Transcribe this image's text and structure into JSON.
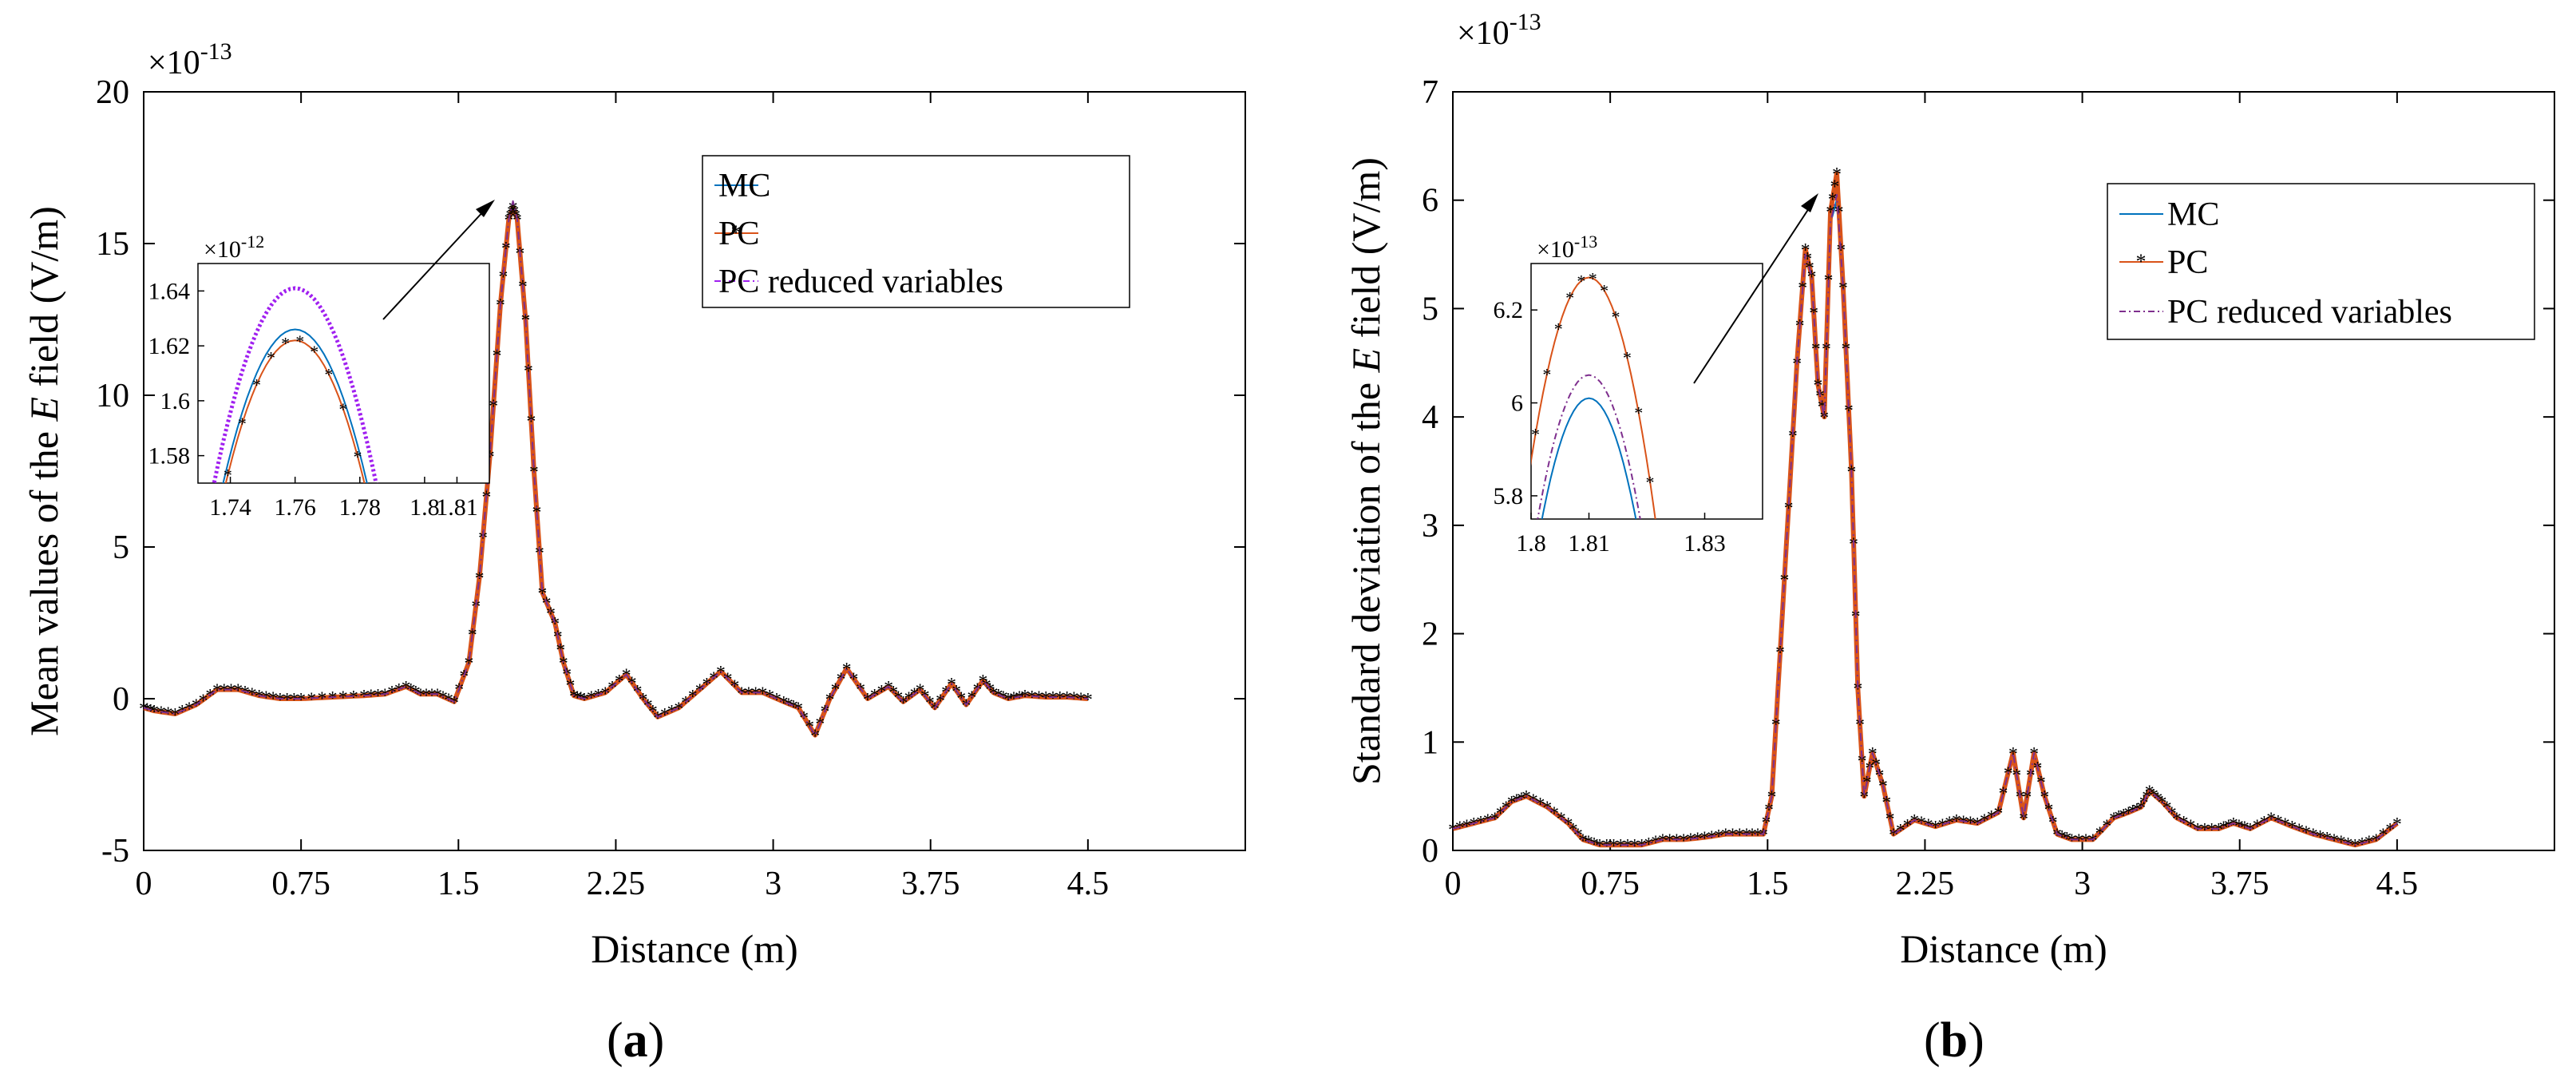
{
  "colors": {
    "mc": "#0072BD",
    "pc": "#D95319",
    "pcr": "#7E2F8E",
    "pcr_inset_a": "#A020F0",
    "axis": "#000000"
  },
  "legend": {
    "mc": "MC",
    "pc": "PC",
    "pcr": "PC reduced variables"
  },
  "chart_data": [
    {
      "type": "line",
      "panel": "a",
      "caption": {
        "open": "(",
        "letter": "a",
        "close": ")"
      },
      "xlabel": "Distance (m)",
      "ylabel_prefix": "Mean values of the ",
      "ylabel_var": "E",
      "ylabel_suffix": " field (V/m)",
      "exponent_label": "×10",
      "exponent": "-13",
      "xlim": [
        0,
        5.25
      ],
      "ylim": [
        -5,
        20
      ],
      "xticks": [
        0,
        0.75,
        1.5,
        2.25,
        3,
        3.75,
        4.5
      ],
      "xtick_labels": [
        "0",
        "0.75",
        "1.5",
        "2.25",
        "3",
        "3.75",
        "4.5"
      ],
      "yticks": [
        -5,
        0,
        5,
        10,
        15,
        20
      ],
      "ytick_labels": [
        "-5",
        "0",
        "5",
        "10",
        "15",
        "20"
      ],
      "legend_position": "top-right",
      "series": [
        {
          "name": "MC",
          "x": [
            0,
            0.05,
            0.15,
            0.25,
            0.35,
            0.45,
            0.55,
            0.65,
            0.75,
            0.9,
            1.05,
            1.15,
            1.25,
            1.32,
            1.4,
            1.48,
            1.55,
            1.6,
            1.65,
            1.7,
            1.74,
            1.76,
            1.78,
            1.82,
            1.86,
            1.9,
            1.96,
            2.0,
            2.05,
            2.1,
            2.2,
            2.3,
            2.38,
            2.45,
            2.55,
            2.65,
            2.75,
            2.85,
            2.95,
            3.05,
            3.12,
            3.2,
            3.27,
            3.35,
            3.45,
            3.55,
            3.62,
            3.7,
            3.77,
            3.85,
            3.92,
            4.0,
            4.05,
            4.12,
            4.2,
            4.3,
            4.4,
            4.5
          ],
          "y": [
            -0.3,
            -0.4,
            -0.5,
            -0.2,
            0.3,
            0.3,
            0.1,
            0,
            0,
            0.05,
            0.1,
            0.15,
            0.4,
            0.15,
            0.15,
            -0.1,
            1.2,
            4.0,
            8.0,
            13.0,
            15.8,
            16.3,
            15.8,
            12.5,
            7.5,
            3.5,
            2.5,
            1.2,
            0.1,
            0,
            0.2,
            0.8,
            0,
            -0.6,
            -0.3,
            0.3,
            0.9,
            0.2,
            0.2,
            -0.1,
            -0.3,
            -1.2,
            0,
            1.0,
            0,
            0.4,
            -0.1,
            0.3,
            -0.3,
            0.5,
            -0.2,
            0.6,
            0.2,
            0,
            0.1,
            0.05,
            0.05,
            0
          ],
          "inset_peak": 1.626
        },
        {
          "name": "PC",
          "x": [
            0,
            0.05,
            0.15,
            0.25,
            0.35,
            0.45,
            0.55,
            0.65,
            0.75,
            0.9,
            1.05,
            1.15,
            1.25,
            1.32,
            1.4,
            1.48,
            1.55,
            1.6,
            1.65,
            1.7,
            1.74,
            1.76,
            1.78,
            1.82,
            1.86,
            1.9,
            1.96,
            2.0,
            2.05,
            2.1,
            2.2,
            2.3,
            2.38,
            2.45,
            2.55,
            2.65,
            2.75,
            2.85,
            2.95,
            3.05,
            3.12,
            3.2,
            3.27,
            3.35,
            3.45,
            3.55,
            3.62,
            3.7,
            3.77,
            3.85,
            3.92,
            4.0,
            4.05,
            4.12,
            4.2,
            4.3,
            4.4,
            4.5
          ],
          "y": [
            -0.3,
            -0.4,
            -0.5,
            -0.2,
            0.3,
            0.3,
            0.1,
            0,
            0,
            0.05,
            0.1,
            0.15,
            0.4,
            0.15,
            0.15,
            -0.1,
            1.2,
            4.0,
            8.0,
            13.0,
            15.8,
            16.2,
            15.8,
            12.5,
            7.5,
            3.5,
            2.5,
            1.2,
            0.1,
            0,
            0.2,
            0.8,
            0,
            -0.6,
            -0.3,
            0.3,
            0.9,
            0.2,
            0.2,
            -0.1,
            -0.3,
            -1.2,
            0,
            1.0,
            0,
            0.4,
            -0.1,
            0.3,
            -0.3,
            0.5,
            -0.2,
            0.6,
            0.2,
            0,
            0.1,
            0.05,
            0.05,
            0
          ],
          "inset_peak": 1.622
        },
        {
          "name": "PC reduced variables",
          "x": [
            0,
            0.05,
            0.15,
            0.25,
            0.35,
            0.45,
            0.55,
            0.65,
            0.75,
            0.9,
            1.05,
            1.15,
            1.25,
            1.32,
            1.4,
            1.48,
            1.55,
            1.6,
            1.65,
            1.7,
            1.74,
            1.76,
            1.78,
            1.82,
            1.86,
            1.9,
            1.96,
            2.0,
            2.05,
            2.1,
            2.2,
            2.3,
            2.38,
            2.45,
            2.55,
            2.65,
            2.75,
            2.85,
            2.95,
            3.05,
            3.12,
            3.2,
            3.27,
            3.35,
            3.45,
            3.55,
            3.62,
            3.7,
            3.77,
            3.85,
            3.92,
            4.0,
            4.05,
            4.12,
            4.2,
            4.3,
            4.4,
            4.5
          ],
          "y": [
            -0.3,
            -0.4,
            -0.5,
            -0.2,
            0.3,
            0.3,
            0.1,
            0,
            0,
            0.05,
            0.1,
            0.15,
            0.4,
            0.15,
            0.15,
            -0.1,
            1.2,
            4.0,
            8.0,
            13.0,
            15.8,
            16.4,
            15.8,
            12.5,
            7.5,
            3.5,
            2.5,
            1.2,
            0.1,
            0,
            0.2,
            0.8,
            0,
            -0.6,
            -0.3,
            0.3,
            0.9,
            0.2,
            0.2,
            -0.1,
            -0.3,
            -1.2,
            0,
            1.0,
            0,
            0.4,
            -0.1,
            0.3,
            -0.3,
            0.5,
            -0.2,
            0.6,
            0.2,
            0,
            0.1,
            0.05,
            0.05,
            0
          ],
          "inset_peak": 1.641
        }
      ],
      "inset": {
        "exponent_label": "×10",
        "exponent": "-12",
        "xlim": [
          1.73,
          1.82
        ],
        "ylim": [
          1.57,
          1.65
        ],
        "xticks": [
          1.74,
          1.76,
          1.78,
          1.8,
          1.81
        ],
        "xtick_labels": [
          "1.74",
          "1.76",
          "1.78",
          "1.8",
          "1.81"
        ],
        "yticks": [
          1.58,
          1.6,
          1.62,
          1.64
        ],
        "ytick_labels": [
          "1.58",
          "1.6",
          "1.62",
          "1.64"
        ],
        "peak_x": 1.76,
        "arrow_target": [
          1.78,
          16.2
        ]
      }
    },
    {
      "type": "line",
      "panel": "b",
      "caption": {
        "open": "(",
        "letter": "b",
        "close": ")"
      },
      "xlabel": "Distance (m)",
      "ylabel_prefix": "Standard deviation of the ",
      "ylabel_var": "E",
      "ylabel_suffix": " field (V/m)",
      "exponent_label": "×10",
      "exponent": "-13",
      "xlim": [
        0,
        5.25
      ],
      "ylim": [
        0,
        7
      ],
      "xticks": [
        0,
        0.75,
        1.5,
        2.25,
        3,
        3.75,
        4.5
      ],
      "xtick_labels": [
        "0",
        "0.75",
        "1.5",
        "2.25",
        "3",
        "3.75",
        "4.5"
      ],
      "yticks": [
        0,
        1,
        2,
        3,
        4,
        5,
        6,
        7
      ],
      "ytick_labels": [
        "0",
        "1",
        "2",
        "3",
        "4",
        "5",
        "6",
        "7"
      ],
      "legend_position": "top-right",
      "series": [
        {
          "name": "MC",
          "x": [
            0,
            0.1,
            0.2,
            0.28,
            0.35,
            0.45,
            0.55,
            0.62,
            0.7,
            0.8,
            0.9,
            1.0,
            1.1,
            1.2,
            1.3,
            1.4,
            1.48,
            1.52,
            1.58,
            1.64,
            1.68,
            1.71,
            1.74,
            1.77,
            1.8,
            1.83,
            1.86,
            1.9,
            1.93,
            1.96,
            2.0,
            2.05,
            2.1,
            2.2,
            2.3,
            2.4,
            2.5,
            2.6,
            2.67,
            2.72,
            2.77,
            2.82,
            2.88,
            2.95,
            3.05,
            3.15,
            3.22,
            3.28,
            3.32,
            3.38,
            3.45,
            3.55,
            3.65,
            3.72,
            3.8,
            3.9,
            4.0,
            4.1,
            4.2,
            4.3,
            4.4,
            4.5
          ],
          "y": [
            0.2,
            0.25,
            0.3,
            0.45,
            0.5,
            0.4,
            0.25,
            0.1,
            0.05,
            0.05,
            0.05,
            0.1,
            0.1,
            0.12,
            0.15,
            0.15,
            0.15,
            0.5,
            2.5,
            4.5,
            5.5,
            5.3,
            4.3,
            4.0,
            5.8,
            6.0,
            5.2,
            3.5,
            1.5,
            0.5,
            0.9,
            0.6,
            0.15,
            0.28,
            0.22,
            0.28,
            0.25,
            0.35,
            0.9,
            0.3,
            0.9,
            0.5,
            0.15,
            0.1,
            0.1,
            0.3,
            0.35,
            0.4,
            0.55,
            0.45,
            0.3,
            0.2,
            0.2,
            0.25,
            0.2,
            0.3,
            0.22,
            0.15,
            0.1,
            0.05,
            0.1,
            0.25
          ],
          "inset_peak": 6.01
        },
        {
          "name": "PC",
          "x": [
            0,
            0.1,
            0.2,
            0.28,
            0.35,
            0.45,
            0.55,
            0.62,
            0.7,
            0.8,
            0.9,
            1.0,
            1.1,
            1.2,
            1.3,
            1.4,
            1.48,
            1.52,
            1.58,
            1.64,
            1.68,
            1.71,
            1.74,
            1.77,
            1.8,
            1.83,
            1.86,
            1.9,
            1.93,
            1.96,
            2.0,
            2.05,
            2.1,
            2.2,
            2.3,
            2.4,
            2.5,
            2.6,
            2.67,
            2.72,
            2.77,
            2.82,
            2.88,
            2.95,
            3.05,
            3.15,
            3.22,
            3.28,
            3.32,
            3.38,
            3.45,
            3.55,
            3.65,
            3.72,
            3.8,
            3.9,
            4.0,
            4.1,
            4.2,
            4.3,
            4.4,
            4.5
          ],
          "y": [
            0.2,
            0.25,
            0.3,
            0.45,
            0.5,
            0.4,
            0.25,
            0.1,
            0.05,
            0.05,
            0.05,
            0.1,
            0.1,
            0.12,
            0.15,
            0.15,
            0.15,
            0.5,
            2.5,
            4.5,
            5.55,
            5.3,
            4.3,
            4.0,
            5.9,
            6.25,
            5.2,
            3.5,
            1.5,
            0.5,
            0.9,
            0.6,
            0.15,
            0.28,
            0.22,
            0.28,
            0.25,
            0.35,
            0.9,
            0.3,
            0.9,
            0.5,
            0.15,
            0.1,
            0.1,
            0.3,
            0.35,
            0.4,
            0.55,
            0.45,
            0.3,
            0.2,
            0.2,
            0.25,
            0.2,
            0.3,
            0.22,
            0.15,
            0.1,
            0.05,
            0.1,
            0.25
          ],
          "inset_peak": 6.27
        },
        {
          "name": "PC reduced variables",
          "x": [
            0,
            0.1,
            0.2,
            0.28,
            0.35,
            0.45,
            0.55,
            0.62,
            0.7,
            0.8,
            0.9,
            1.0,
            1.1,
            1.2,
            1.3,
            1.4,
            1.48,
            1.52,
            1.58,
            1.64,
            1.68,
            1.71,
            1.74,
            1.77,
            1.8,
            1.83,
            1.86,
            1.9,
            1.93,
            1.96,
            2.0,
            2.05,
            2.1,
            2.2,
            2.3,
            2.4,
            2.5,
            2.6,
            2.67,
            2.72,
            2.77,
            2.82,
            2.88,
            2.95,
            3.05,
            3.15,
            3.22,
            3.28,
            3.32,
            3.38,
            3.45,
            3.55,
            3.65,
            3.72,
            3.8,
            3.9,
            4.0,
            4.1,
            4.2,
            4.3,
            4.4,
            4.5
          ],
          "y": [
            0.2,
            0.25,
            0.3,
            0.45,
            0.5,
            0.4,
            0.25,
            0.1,
            0.05,
            0.05,
            0.05,
            0.1,
            0.1,
            0.12,
            0.15,
            0.15,
            0.15,
            0.5,
            2.5,
            4.5,
            5.5,
            5.3,
            4.3,
            4.0,
            5.8,
            6.05,
            5.2,
            3.5,
            1.5,
            0.5,
            0.9,
            0.6,
            0.15,
            0.28,
            0.22,
            0.28,
            0.25,
            0.35,
            0.9,
            0.3,
            0.9,
            0.5,
            0.15,
            0.1,
            0.1,
            0.3,
            0.35,
            0.4,
            0.55,
            0.45,
            0.3,
            0.2,
            0.2,
            0.25,
            0.2,
            0.3,
            0.22,
            0.15,
            0.1,
            0.05,
            0.1,
            0.25
          ],
          "inset_peak": 6.06
        }
      ],
      "inset": {
        "exponent_label": "×10",
        "exponent": "-13",
        "xlim": [
          1.8,
          1.84
        ],
        "ylim": [
          5.75,
          6.3
        ],
        "xticks": [
          1.8,
          1.81,
          1.83
        ],
        "xtick_labels": [
          "1.8",
          "1.81",
          "1.83"
        ],
        "yticks": [
          5.8,
          6.0,
          6.2
        ],
        "ytick_labels": [
          "5.8",
          "6",
          "6.2"
        ],
        "peak_x": 1.81,
        "arrow_target": [
          1.83,
          6.1
        ]
      }
    }
  ]
}
